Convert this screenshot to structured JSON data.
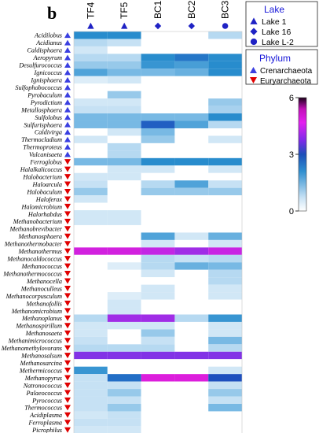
{
  "chart_data": {
    "type": "heatmap",
    "panel_label": "b",
    "columns": [
      {
        "label": "TF4",
        "lake": "Lake 1"
      },
      {
        "label": "TF5",
        "lake": "Lake 1"
      },
      {
        "label": "BC1",
        "lake": "Lake 16"
      },
      {
        "label": "BC2",
        "lake": "Lake 16"
      },
      {
        "label": "BC3",
        "lake": "Lake L-2"
      }
    ],
    "rows": [
      {
        "name": "Acidilobus",
        "phylum": "Crenarchaeota"
      },
      {
        "name": "Acidianus",
        "phylum": "Crenarchaeota"
      },
      {
        "name": "Caldisphaera",
        "phylum": "Crenarchaeota"
      },
      {
        "name": "Aeropyrum",
        "phylum": "Crenarchaeota"
      },
      {
        "name": "Desulfurococcus",
        "phylum": "Crenarchaeota"
      },
      {
        "name": "Ignicoccus",
        "phylum": "Crenarchaeota"
      },
      {
        "name": "Ignisphaera",
        "phylum": "Crenarchaeota"
      },
      {
        "name": "Sulfophobococcus",
        "phylum": "Crenarchaeota"
      },
      {
        "name": "Pyrobaculum",
        "phylum": "Crenarchaeota"
      },
      {
        "name": "Pyrodictium",
        "phylum": "Crenarchaeota"
      },
      {
        "name": "Metallosphaera",
        "phylum": "Crenarchaeota"
      },
      {
        "name": "Sulfolobus",
        "phylum": "Crenarchaeota"
      },
      {
        "name": "Sulfurisphaera",
        "phylum": "Crenarchaeota"
      },
      {
        "name": "Caldivirga",
        "phylum": "Crenarchaeota"
      },
      {
        "name": "Thermocladium",
        "phylum": "Crenarchaeota"
      },
      {
        "name": "Thermoproteus",
        "phylum": "Crenarchaeota"
      },
      {
        "name": "Vulcanisaeta",
        "phylum": "Crenarchaeota"
      },
      {
        "name": "Ferroglobus",
        "phylum": "Euryarchaeota"
      },
      {
        "name": "Halalkalicoccus",
        "phylum": "Euryarchaeota"
      },
      {
        "name": "Halobacterium",
        "phylum": "Euryarchaeota"
      },
      {
        "name": "Haloarcula",
        "phylum": "Euryarchaeota"
      },
      {
        "name": "Halobaculum",
        "phylum": "Euryarchaeota"
      },
      {
        "name": "Haloferax",
        "phylum": "Euryarchaeota"
      },
      {
        "name": "Halomicrobium",
        "phylum": "Euryarchaeota"
      },
      {
        "name": "Halorhabdus",
        "phylum": "Euryarchaeota"
      },
      {
        "name": "Methanobacterium",
        "phylum": "Euryarchaeota"
      },
      {
        "name": "Methanobrevibacter",
        "phylum": "Euryarchaeota"
      },
      {
        "name": "Methanosphaera",
        "phylum": "Euryarchaeota"
      },
      {
        "name": "Methanothermobacter",
        "phylum": "Euryarchaeota"
      },
      {
        "name": "Methanothermus",
        "phylum": "Euryarchaeota"
      },
      {
        "name": "Methanocaldococcus",
        "phylum": "Euryarchaeota"
      },
      {
        "name": "Methanococcus",
        "phylum": "Euryarchaeota"
      },
      {
        "name": "Methanothermococcus",
        "phylum": "Euryarchaeota"
      },
      {
        "name": "Methanocella",
        "phylum": "Euryarchaeota"
      },
      {
        "name": "Methanoculleus",
        "phylum": "Euryarchaeota"
      },
      {
        "name": "Methanocorpusculum",
        "phylum": "Euryarchaeota"
      },
      {
        "name": "Methanofollis",
        "phylum": "Euryarchaeota"
      },
      {
        "name": "Methanomicrobium",
        "phylum": "Euryarchaeota"
      },
      {
        "name": "Methanoplanus",
        "phylum": "Euryarchaeota"
      },
      {
        "name": "Methanospirillum",
        "phylum": "Euryarchaeota"
      },
      {
        "name": "Methanosaeta",
        "phylum": "Euryarchaeota"
      },
      {
        "name": "Methanimicrococcus",
        "phylum": "Euryarchaeota"
      },
      {
        "name": "Methanomethylovorans",
        "phylum": "Euryarchaeota"
      },
      {
        "name": "Methanosalsum",
        "phylum": "Euryarchaeota"
      },
      {
        "name": "Methanosarcina",
        "phylum": "Euryarchaeota"
      },
      {
        "name": "Methermicoccus",
        "phylum": "Euryarchaeota"
      },
      {
        "name": "Methanopyrus",
        "phylum": "Euryarchaeota"
      },
      {
        "name": "Natronococcus",
        "phylum": "Euryarchaeota"
      },
      {
        "name": "Palaeococcus",
        "phylum": "Euryarchaeota"
      },
      {
        "name": "Pyrococcus",
        "phylum": "Euryarchaeota"
      },
      {
        "name": "Thermococcus",
        "phylum": "Euryarchaeota"
      },
      {
        "name": "Acidiplasma",
        "phylum": "Euryarchaeota"
      },
      {
        "name": "Ferroplasma",
        "phylum": "Euryarchaeota"
      },
      {
        "name": "Picrophilus",
        "phylum": "Euryarchaeota"
      }
    ],
    "values": [
      [
        2.0,
        2.0,
        0.0,
        0.0,
        0.6
      ],
      [
        0.6,
        0.5,
        0.0,
        0.0,
        0.0
      ],
      [
        0.4,
        0.0,
        0.0,
        0.0,
        0.0
      ],
      [
        0.6,
        0.6,
        2.0,
        2.3,
        2.0
      ],
      [
        0.8,
        0.8,
        1.8,
        1.6,
        2.0
      ],
      [
        1.5,
        1.0,
        1.0,
        1.2,
        2.0
      ],
      [
        0.3,
        0.4,
        0.0,
        0.0,
        0.0
      ],
      [
        0.0,
        0.0,
        0.0,
        0.0,
        0.0
      ],
      [
        0.0,
        0.8,
        0.0,
        0.0,
        0.0
      ],
      [
        0.4,
        0.4,
        0.0,
        0.0,
        0.8
      ],
      [
        0.5,
        0.5,
        0.0,
        0.0,
        0.7
      ],
      [
        1.0,
        1.0,
        1.0,
        1.0,
        2.0
      ],
      [
        1.0,
        1.0,
        2.6,
        1.5,
        0.6
      ],
      [
        0.0,
        0.4,
        1.0,
        0.0,
        0.0
      ],
      [
        0.4,
        0.0,
        0.8,
        0.0,
        0.4
      ],
      [
        0.0,
        0.6,
        0.0,
        0.0,
        0.0
      ],
      [
        0.0,
        0.6,
        0.0,
        0.0,
        0.0
      ],
      [
        1.0,
        1.0,
        2.0,
        2.0,
        2.0
      ],
      [
        0.0,
        0.4,
        0.4,
        0.0,
        0.4
      ],
      [
        0.4,
        0.4,
        0.0,
        0.0,
        0.0
      ],
      [
        0.5,
        0.0,
        0.6,
        1.5,
        0.5
      ],
      [
        0.8,
        0.0,
        0.8,
        0.8,
        0.8
      ],
      [
        0.4,
        0.0,
        0.0,
        0.0,
        0.0
      ],
      [
        0.0,
        0.0,
        0.0,
        0.0,
        0.0
      ],
      [
        0.4,
        0.4,
        0.0,
        0.0,
        0.0
      ],
      [
        0.4,
        0.4,
        0.0,
        0.0,
        0.0
      ],
      [
        0.0,
        0.0,
        0.0,
        0.0,
        0.0
      ],
      [
        0.0,
        0.0,
        1.5,
        0.4,
        1.2
      ],
      [
        0.0,
        0.0,
        0.4,
        0.0,
        0.4
      ],
      [
        4.8,
        4.8,
        4.5,
        4.0,
        4.6
      ],
      [
        0.0,
        0.0,
        0.6,
        0.5,
        0.6
      ],
      [
        0.0,
        0.3,
        0.6,
        1.2,
        1.0
      ],
      [
        0.0,
        0.0,
        0.4,
        0.0,
        0.6
      ],
      [
        0.0,
        0.0,
        0.0,
        0.0,
        0.6
      ],
      [
        0.0,
        0.0,
        0.4,
        0.0,
        0.4
      ],
      [
        0.0,
        0.3,
        0.4,
        0.0,
        0.4
      ],
      [
        0.0,
        0.4,
        0.0,
        0.0,
        0.0
      ],
      [
        0.0,
        0.4,
        0.0,
        0.0,
        0.0
      ],
      [
        0.6,
        4.0,
        4.0,
        0.6,
        1.8
      ],
      [
        0.4,
        0.4,
        0.4,
        0.0,
        0.4
      ],
      [
        0.4,
        0.0,
        0.8,
        0.0,
        0.4
      ],
      [
        0.5,
        0.0,
        0.5,
        0.0,
        1.0
      ],
      [
        0.6,
        0.6,
        0.6,
        0.0,
        0.6
      ],
      [
        3.6,
        3.6,
        3.6,
        3.6,
        3.6
      ],
      [
        0.0,
        0.0,
        0.0,
        0.0,
        0.0
      ],
      [
        1.8,
        0.0,
        0.0,
        0.0,
        0.4
      ],
      [
        0.5,
        2.4,
        5.0,
        5.0,
        2.8
      ],
      [
        0.5,
        0.5,
        0.0,
        0.0,
        0.5
      ],
      [
        0.5,
        0.8,
        0.0,
        0.0,
        0.8
      ],
      [
        0.5,
        0.5,
        0.0,
        0.0,
        0.5
      ],
      [
        0.5,
        0.8,
        0.0,
        0.0,
        1.0
      ],
      [
        0.4,
        0.5,
        0.0,
        0.0,
        0.0
      ],
      [
        0.5,
        0.5,
        0.0,
        0.0,
        0.0
      ],
      [
        0.4,
        0.4,
        0.0,
        0.0,
        0.0
      ]
    ],
    "colorbar": {
      "min": 0,
      "max": 6,
      "ticks": [
        0,
        3,
        6
      ]
    },
    "colors": {
      "lake_marker": "#1f22c4",
      "crenarchaeota": "#3a3fe0",
      "euryarchaeota": "#e00000",
      "legend_title": "#1515d8"
    },
    "legend_lake": {
      "title": "Lake",
      "items": [
        {
          "label": "Lake 1",
          "marker": "triangle"
        },
        {
          "label": "Lake 16",
          "marker": "diamond"
        },
        {
          "label": "Lake L-2",
          "marker": "circle"
        }
      ]
    },
    "legend_phylum": {
      "title": "Phylum",
      "items": [
        {
          "label": "Crenarchaeota",
          "marker": "triangle-up"
        },
        {
          "label": "Euryarchaeota",
          "marker": "triangle-down"
        }
      ]
    }
  }
}
